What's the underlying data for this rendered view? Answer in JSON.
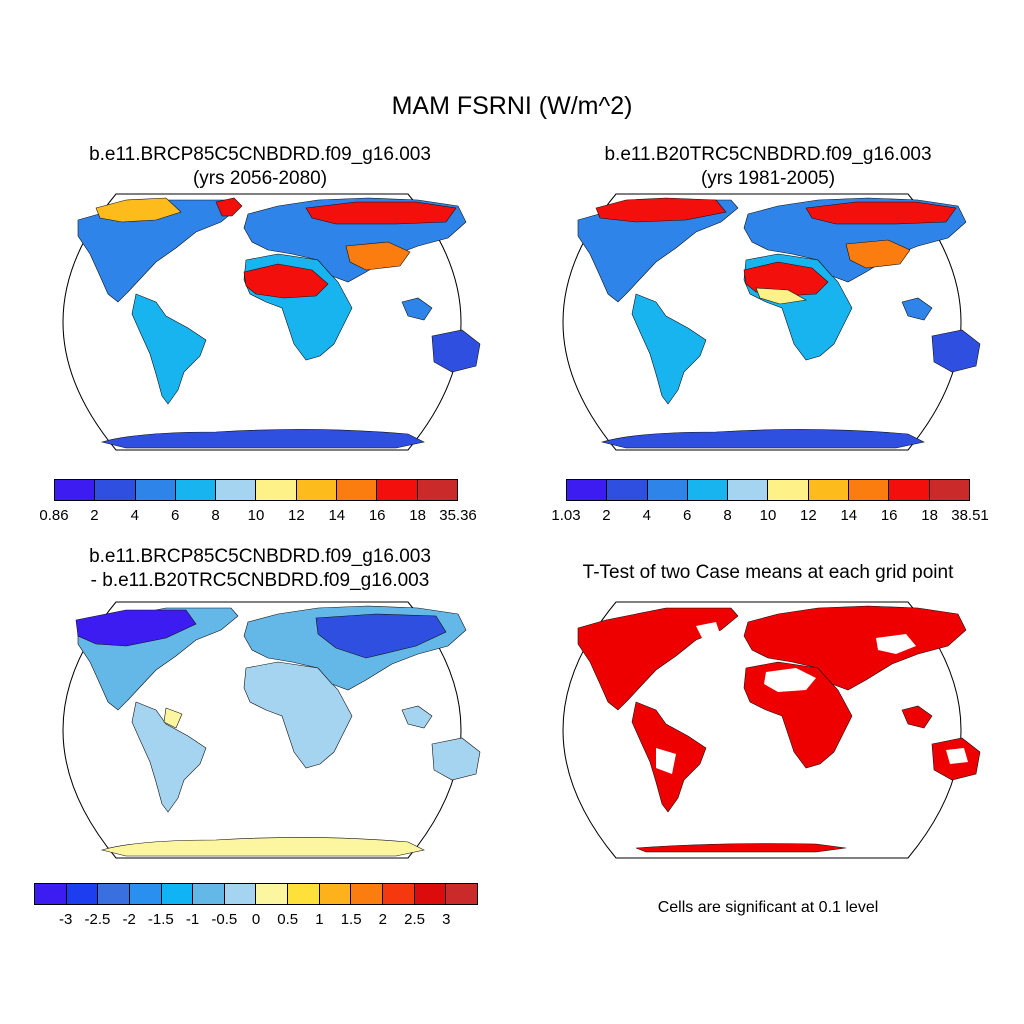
{
  "title": "MAM FSRNI (W/m^2)",
  "panels": [
    {
      "id": "case1",
      "title_line1": "b.e11.BRCP85C5CNBDRD.f09_g16.003",
      "title_line2": "(yrs 2056-2080)",
      "colorbar": {
        "colors": [
          "#3d1cf2",
          "#2f4fe0",
          "#2e84e8",
          "#18b4f0",
          "#a4d4f0",
          "#fdf187",
          "#fdbb1c",
          "#fb7d0f",
          "#f3100c",
          "#cb2a2a"
        ],
        "labels": [
          "0.86",
          "2",
          "4",
          "6",
          "8",
          "10",
          "12",
          "14",
          "16",
          "18",
          "35.36"
        ]
      }
    },
    {
      "id": "case2",
      "title_line1": "b.e11.B20TRC5CNBDRD.f09_g16.003",
      "title_line2": "(yrs 1981-2005)",
      "colorbar": {
        "colors": [
          "#3d1cf2",
          "#2f4fe0",
          "#2e84e8",
          "#18b4f0",
          "#a4d4f0",
          "#fdf187",
          "#fdbb1c",
          "#fb7d0f",
          "#f3100c",
          "#cb2a2a"
        ],
        "labels": [
          "1.03",
          "2",
          "4",
          "6",
          "8",
          "10",
          "12",
          "14",
          "16",
          "18",
          "38.51"
        ]
      }
    },
    {
      "id": "difference",
      "title_line1": "b.e11.BRCP85C5CNBDRD.f09_g16.003",
      "title_line2": "- b.e11.B20TRC5CNBDRD.f09_g16.003",
      "colorbar": {
        "colors": [
          "#3d1cf2",
          "#1d3ef0",
          "#3a6fdf",
          "#2a90f0",
          "#10b4f5",
          "#64b8e8",
          "#a4d4f0",
          "#fdf6a0",
          "#fde03a",
          "#fdb21b",
          "#fb7d0f",
          "#f5380d",
          "#dc0c0c",
          "#cb2a2a"
        ],
        "labels": [
          "-3",
          "-2.5",
          "-2",
          "-1.5",
          "-1",
          "-0.5",
          "0",
          "0.5",
          "1",
          "1.5",
          "2",
          "2.5",
          "3"
        ]
      }
    },
    {
      "id": "ttest",
      "title_line1": "T-Test of two Case means at each grid point",
      "note": "Cells are significant at 0.1 level",
      "significant_color": "#ee0000"
    }
  ]
}
